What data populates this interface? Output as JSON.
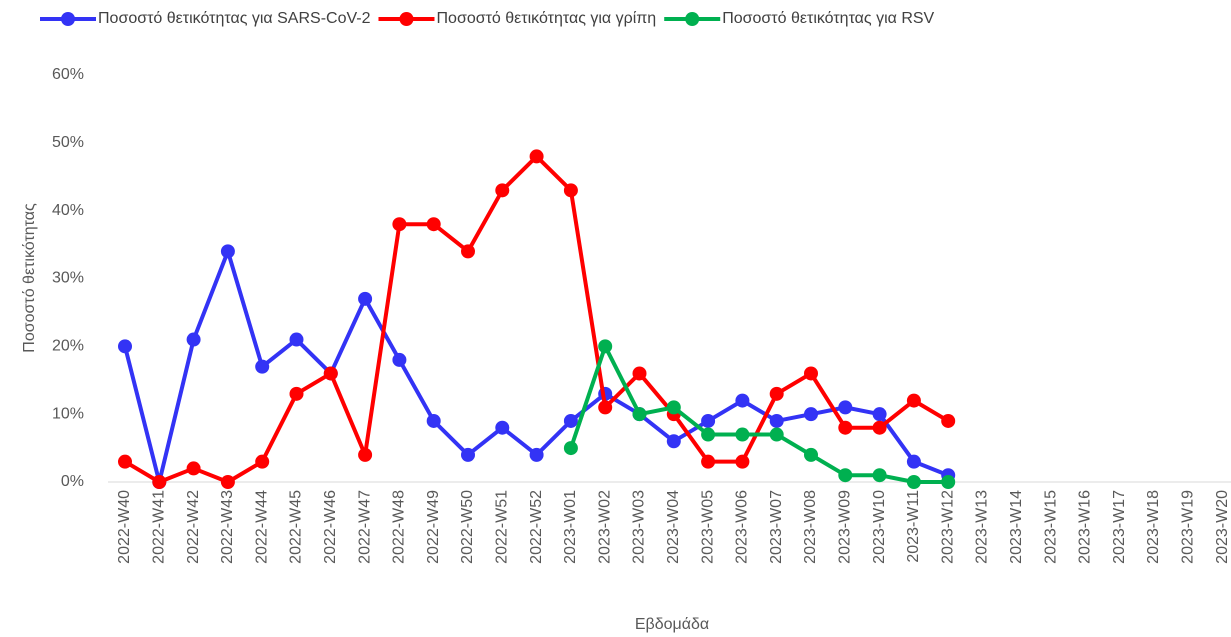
{
  "chart_data": {
    "type": "line",
    "x_label": "Εβδομάδα",
    "y_label": "Ποσοστό θετικότητας",
    "categories": [
      "2022-W40",
      "2022-W41",
      "2022-W42",
      "2022-W43",
      "2022-W44",
      "2022-W45",
      "2022-W46",
      "2022-W47",
      "2022-W48",
      "2022-W49",
      "2022-W50",
      "2022-W51",
      "2022-W52",
      "2023-W01",
      "2023-W02",
      "2023-W03",
      "2023-W04",
      "2023-W05",
      "2023-W06",
      "2023-W07",
      "2023-W08",
      "2023-W09",
      "2023-W10",
      "2023-W11",
      "2023-W12",
      "2023-W13",
      "2023-W14",
      "2023-W15",
      "2023-W16",
      "2023-W17",
      "2023-W18",
      "2023-W19",
      "2023-W20"
    ],
    "series": [
      {
        "name": "Ποσοστό θετικότητας για SARS-CoV-2",
        "color": "#3333f5",
        "values": [
          20,
          0,
          21,
          34,
          17,
          21,
          16,
          27,
          18,
          9,
          4,
          8,
          4,
          9,
          13,
          10,
          6,
          9,
          12,
          9,
          10,
          11,
          10,
          3,
          1,
          null,
          null,
          null,
          null,
          null,
          null,
          null,
          null
        ]
      },
      {
        "name": "Ποσοστό θετικότητας για γρίπη",
        "color": "#ff0000",
        "values": [
          3,
          0,
          2,
          0,
          3,
          13,
          16,
          4,
          38,
          38,
          34,
          43,
          48,
          43,
          11,
          16,
          10,
          3,
          3,
          13,
          16,
          8,
          8,
          12,
          9,
          null,
          null,
          null,
          null,
          null,
          null,
          null,
          null
        ]
      },
      {
        "name": "Ποσοστό θετικότητας για RSV",
        "color": "#00b050",
        "values": [
          null,
          null,
          null,
          null,
          null,
          null,
          null,
          null,
          null,
          null,
          null,
          null,
          null,
          5,
          20,
          10,
          11,
          7,
          7,
          7,
          4,
          1,
          1,
          0,
          0,
          null,
          null,
          null,
          null,
          null,
          null,
          null,
          null
        ]
      }
    ],
    "ylim": [
      0,
      60
    ],
    "yticks": [
      {
        "value": 0,
        "label": "0%"
      },
      {
        "value": 10,
        "label": "10%"
      },
      {
        "value": 20,
        "label": "20%"
      },
      {
        "value": 30,
        "label": "30%"
      },
      {
        "value": 40,
        "label": "40%"
      },
      {
        "value": 50,
        "label": "50%"
      },
      {
        "value": 60,
        "label": "60%"
      }
    ],
    "legend": "top",
    "grid": false
  }
}
